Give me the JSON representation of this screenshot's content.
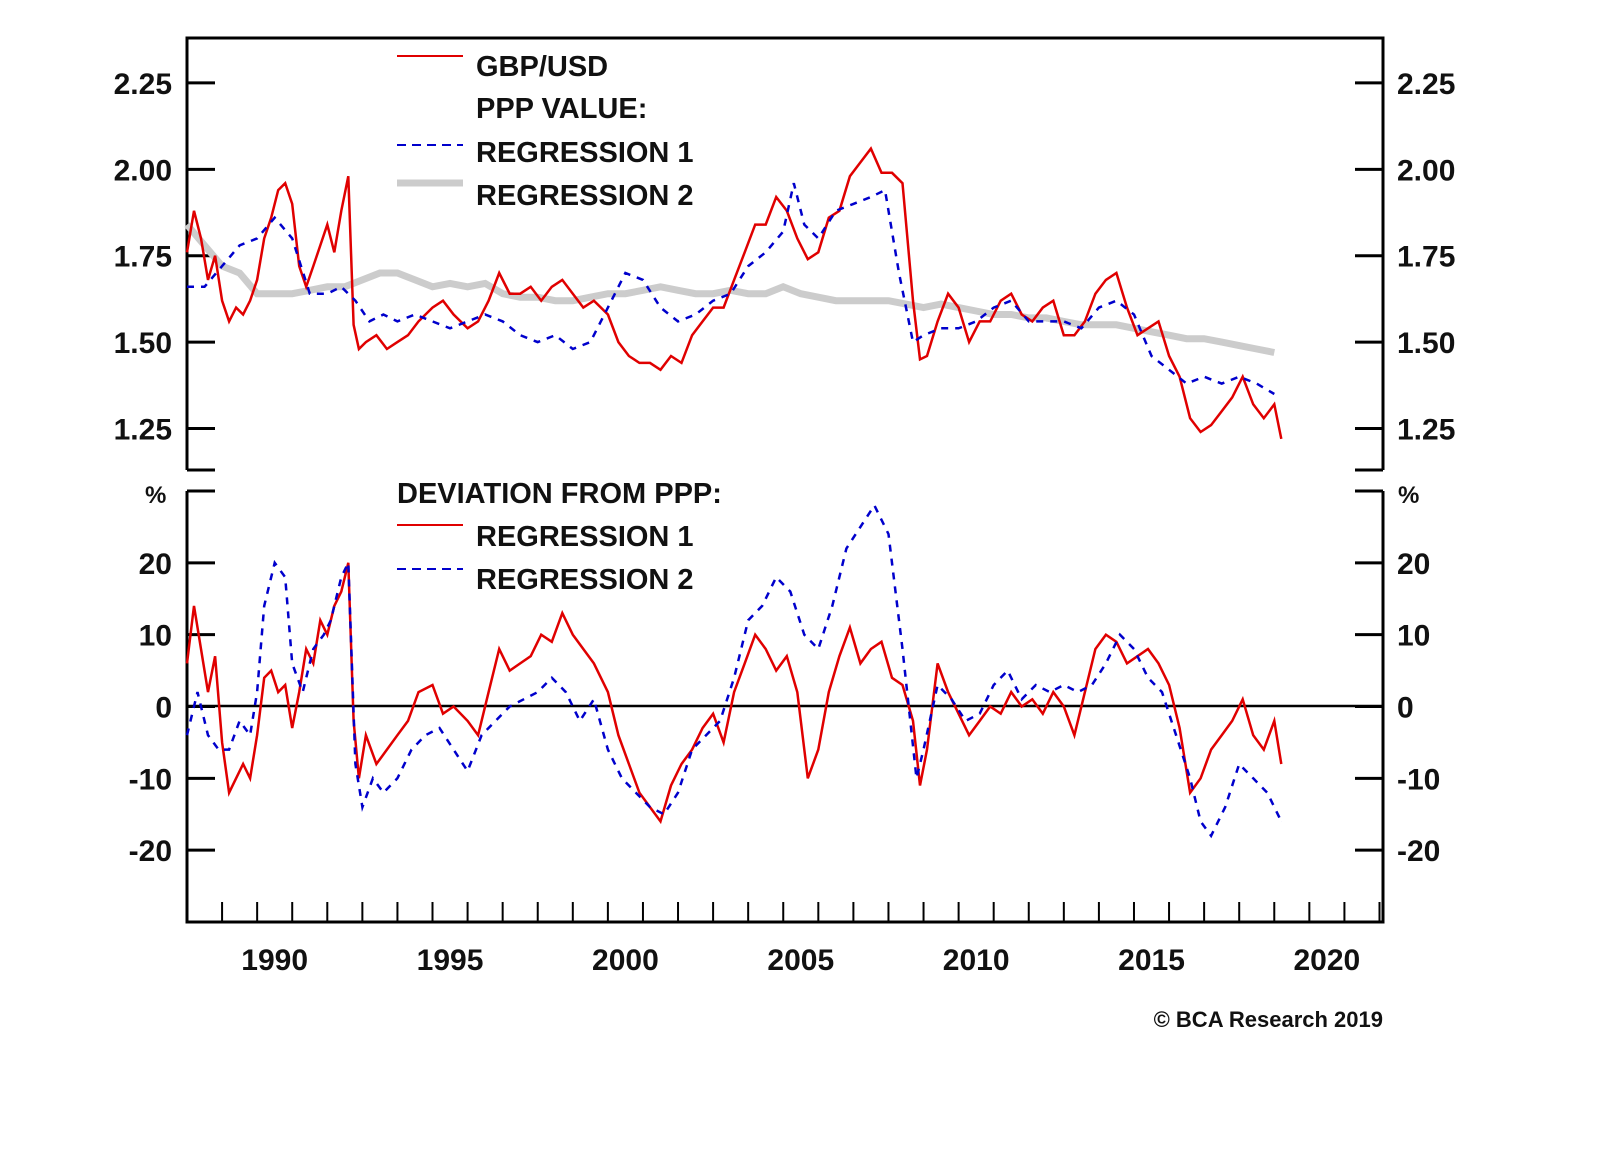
{
  "chart_data": [
    {
      "type": "line",
      "panel": "top",
      "title": "",
      "xlabel": "",
      "ylabel": "",
      "ylim": [
        1.13,
        2.38
      ],
      "xlim": [
        1988.0,
        2022.1
      ],
      "yticks": [
        "2.25",
        "2.00",
        "1.75",
        "1.50",
        "1.25"
      ],
      "ytick_values": [
        2.25,
        2.0,
        1.75,
        1.5,
        1.25
      ],
      "grid": false,
      "legend": {
        "placement": "top-left",
        "entries": [
          {
            "label": "GBP/USD",
            "style": "solid",
            "color": "#e00000"
          },
          {
            "label": "PPP VALUE:",
            "style": "none"
          },
          {
            "label": "REGRESSION 1",
            "style": "dashed",
            "color": "#0000cc"
          },
          {
            "label": "REGRESSION 2",
            "style": "thick",
            "color": "#cccccc"
          }
        ]
      },
      "series": [
        {
          "name": "GBP/USD",
          "color": "#e00000",
          "style": "solid",
          "x": [
            1988.0,
            1988.2,
            1988.4,
            1988.6,
            1988.8,
            1989.0,
            1989.2,
            1989.4,
            1989.6,
            1989.8,
            1990.0,
            1990.2,
            1990.4,
            1990.6,
            1990.8,
            1991.0,
            1991.2,
            1991.4,
            1991.6,
            1991.8,
            1992.0,
            1992.2,
            1992.4,
            1992.6,
            1992.75,
            1992.9,
            1993.1,
            1993.4,
            1993.7,
            1994.0,
            1994.3,
            1994.6,
            1995.0,
            1995.3,
            1995.6,
            1996.0,
            1996.3,
            1996.6,
            1996.9,
            1997.2,
            1997.5,
            1997.8,
            1998.1,
            1998.4,
            1998.7,
            1999.0,
            1999.3,
            1999.6,
            2000.0,
            2000.3,
            2000.6,
            2000.9,
            2001.2,
            2001.5,
            2001.8,
            2002.1,
            2002.4,
            2002.7,
            2003.0,
            2003.3,
            2003.6,
            2003.9,
            2004.2,
            2004.5,
            2004.8,
            2005.1,
            2005.4,
            2005.7,
            2006.0,
            2006.3,
            2006.6,
            2006.9,
            2007.2,
            2007.5,
            2007.8,
            2008.1,
            2008.4,
            2008.7,
            2008.9,
            2009.1,
            2009.4,
            2009.7,
            2010.0,
            2010.3,
            2010.6,
            2010.9,
            2011.2,
            2011.5,
            2011.8,
            2012.1,
            2012.4,
            2012.7,
            2013.0,
            2013.3,
            2013.6,
            2013.9,
            2014.2,
            2014.5,
            2014.8,
            2015.1,
            2015.4,
            2015.7,
            2016.0,
            2016.3,
            2016.6,
            2016.9,
            2017.2,
            2017.5,
            2017.8,
            2018.1,
            2018.4,
            2018.7,
            2019.0,
            2019.2
          ],
          "values": [
            1.76,
            1.88,
            1.8,
            1.68,
            1.75,
            1.62,
            1.56,
            1.6,
            1.58,
            1.62,
            1.68,
            1.8,
            1.86,
            1.94,
            1.96,
            1.9,
            1.72,
            1.66,
            1.72,
            1.78,
            1.84,
            1.76,
            1.88,
            1.98,
            1.55,
            1.48,
            1.5,
            1.52,
            1.48,
            1.5,
            1.52,
            1.56,
            1.6,
            1.62,
            1.58,
            1.54,
            1.56,
            1.62,
            1.7,
            1.64,
            1.64,
            1.66,
            1.62,
            1.66,
            1.68,
            1.64,
            1.6,
            1.62,
            1.58,
            1.5,
            1.46,
            1.44,
            1.44,
            1.42,
            1.46,
            1.44,
            1.52,
            1.56,
            1.6,
            1.6,
            1.68,
            1.76,
            1.84,
            1.84,
            1.92,
            1.88,
            1.8,
            1.74,
            1.76,
            1.86,
            1.88,
            1.98,
            2.02,
            2.06,
            1.99,
            1.99,
            1.96,
            1.62,
            1.45,
            1.46,
            1.56,
            1.64,
            1.6,
            1.5,
            1.56,
            1.56,
            1.62,
            1.64,
            1.58,
            1.56,
            1.6,
            1.62,
            1.52,
            1.52,
            1.56,
            1.64,
            1.68,
            1.7,
            1.6,
            1.52,
            1.54,
            1.56,
            1.46,
            1.4,
            1.28,
            1.24,
            1.26,
            1.3,
            1.34,
            1.4,
            1.32,
            1.28,
            1.32,
            1.22
          ]
        },
        {
          "name": "PPP Value: Regression 1",
          "color": "#0000cc",
          "style": "dashed",
          "x": [
            1988.0,
            1988.5,
            1989.0,
            1989.5,
            1990.0,
            1990.5,
            1991.0,
            1991.5,
            1992.0,
            1992.4,
            1992.8,
            1993.2,
            1993.6,
            1994.0,
            1994.5,
            1995.0,
            1995.5,
            1996.0,
            1996.5,
            1997.0,
            1997.5,
            1998.0,
            1998.5,
            1999.0,
            1999.5,
            2000.0,
            2000.5,
            2001.0,
            2001.5,
            2002.0,
            2002.5,
            2003.0,
            2003.5,
            2004.0,
            2004.5,
            2005.0,
            2005.3,
            2005.6,
            2006.0,
            2006.5,
            2007.0,
            2007.5,
            2007.9,
            2008.3,
            2008.7,
            2009.0,
            2009.5,
            2010.0,
            2010.5,
            2011.0,
            2011.5,
            2012.0,
            2012.5,
            2013.0,
            2013.5,
            2014.0,
            2014.5,
            2015.0,
            2015.5,
            2016.0,
            2016.5,
            2017.0,
            2017.5,
            2018.0,
            2018.5,
            2019.0
          ],
          "values": [
            1.66,
            1.66,
            1.72,
            1.78,
            1.8,
            1.86,
            1.8,
            1.64,
            1.64,
            1.66,
            1.62,
            1.56,
            1.58,
            1.56,
            1.58,
            1.56,
            1.54,
            1.56,
            1.58,
            1.56,
            1.52,
            1.5,
            1.52,
            1.48,
            1.5,
            1.6,
            1.7,
            1.68,
            1.6,
            1.56,
            1.58,
            1.62,
            1.64,
            1.72,
            1.76,
            1.82,
            1.96,
            1.84,
            1.8,
            1.88,
            1.9,
            1.92,
            1.94,
            1.7,
            1.5,
            1.52,
            1.54,
            1.54,
            1.56,
            1.6,
            1.62,
            1.56,
            1.56,
            1.56,
            1.54,
            1.6,
            1.62,
            1.58,
            1.46,
            1.42,
            1.38,
            1.4,
            1.38,
            1.4,
            1.38,
            1.35
          ]
        },
        {
          "name": "PPP Value: Regression 2",
          "color": "#cccccc",
          "style": "thick",
          "x": [
            1988.0,
            1988.5,
            1989.0,
            1989.5,
            1990.0,
            1990.5,
            1991.0,
            1991.5,
            1992.0,
            1992.5,
            1993.0,
            1993.5,
            1994.0,
            1994.5,
            1995.0,
            1995.5,
            1996.0,
            1996.5,
            1997.0,
            1997.5,
            1998.0,
            1998.5,
            1999.0,
            1999.5,
            2000.0,
            2000.5,
            2001.0,
            2001.5,
            2002.0,
            2002.5,
            2003.0,
            2003.5,
            2004.0,
            2004.5,
            2005.0,
            2005.5,
            2006.0,
            2006.5,
            2007.0,
            2007.5,
            2008.0,
            2008.5,
            2009.0,
            2009.5,
            2010.0,
            2010.5,
            2011.0,
            2011.5,
            2012.0,
            2012.5,
            2013.0,
            2013.5,
            2014.0,
            2014.5,
            2015.0,
            2015.5,
            2016.0,
            2016.5,
            2017.0,
            2017.5,
            2018.0,
            2018.5,
            2019.0
          ],
          "values": [
            1.84,
            1.78,
            1.72,
            1.7,
            1.64,
            1.64,
            1.64,
            1.65,
            1.66,
            1.66,
            1.68,
            1.7,
            1.7,
            1.68,
            1.66,
            1.67,
            1.66,
            1.67,
            1.64,
            1.63,
            1.63,
            1.62,
            1.62,
            1.63,
            1.64,
            1.64,
            1.65,
            1.66,
            1.65,
            1.64,
            1.64,
            1.65,
            1.64,
            1.64,
            1.66,
            1.64,
            1.63,
            1.62,
            1.62,
            1.62,
            1.62,
            1.61,
            1.6,
            1.61,
            1.6,
            1.59,
            1.58,
            1.58,
            1.57,
            1.57,
            1.56,
            1.55,
            1.55,
            1.55,
            1.54,
            1.53,
            1.52,
            1.51,
            1.51,
            1.5,
            1.49,
            1.48,
            1.47
          ]
        }
      ]
    },
    {
      "type": "line",
      "panel": "bottom",
      "title": "",
      "xlabel": "",
      "ylabel": "%",
      "ylim": [
        -30,
        30
      ],
      "xlim": [
        1988.0,
        2022.1
      ],
      "yticks": [
        "20",
        "10",
        "0",
        "-10",
        "-20"
      ],
      "ytick_values": [
        20,
        10,
        0,
        -10,
        -20
      ],
      "zero_line": true,
      "grid": false,
      "xticks": [
        "1990",
        "1995",
        "2000",
        "2005",
        "2010",
        "2015",
        "2020"
      ],
      "xtick_values": [
        1990,
        1995,
        2000,
        2005,
        2010,
        2015,
        2020
      ],
      "legend": {
        "placement": "top-left",
        "entries": [
          {
            "label": "DEVIATION FROM PPP:",
            "style": "none"
          },
          {
            "label": "REGRESSION 1",
            "style": "solid",
            "color": "#e00000"
          },
          {
            "label": "REGRESSION 2",
            "style": "dashed",
            "color": "#0000cc"
          }
        ]
      },
      "series": [
        {
          "name": "Deviation from PPP: Regression 1",
          "color": "#e00000",
          "style": "solid",
          "x": [
            1988.0,
            1988.2,
            1988.4,
            1988.6,
            1988.8,
            1989.0,
            1989.2,
            1989.4,
            1989.6,
            1989.8,
            1990.0,
            1990.2,
            1990.4,
            1990.6,
            1990.8,
            1991.0,
            1991.2,
            1991.4,
            1991.6,
            1991.8,
            1992.0,
            1992.2,
            1992.4,
            1992.6,
            1992.75,
            1992.9,
            1993.1,
            1993.4,
            1993.7,
            1994.0,
            1994.3,
            1994.6,
            1995.0,
            1995.3,
            1995.6,
            1996.0,
            1996.3,
            1996.6,
            1996.9,
            1997.2,
            1997.5,
            1997.8,
            1998.1,
            1998.4,
            1998.7,
            1999.0,
            1999.3,
            1999.6,
            2000.0,
            2000.3,
            2000.6,
            2000.9,
            2001.2,
            2001.5,
            2001.8,
            2002.1,
            2002.4,
            2002.7,
            2003.0,
            2003.3,
            2003.6,
            2003.9,
            2004.2,
            2004.5,
            2004.8,
            2005.1,
            2005.4,
            2005.7,
            2006.0,
            2006.3,
            2006.6,
            2006.9,
            2007.2,
            2007.5,
            2007.8,
            2008.1,
            2008.4,
            2008.7,
            2008.9,
            2009.1,
            2009.4,
            2009.7,
            2010.0,
            2010.3,
            2010.6,
            2010.9,
            2011.2,
            2011.5,
            2011.8,
            2012.1,
            2012.4,
            2012.7,
            2013.0,
            2013.3,
            2013.6,
            2013.9,
            2014.2,
            2014.5,
            2014.8,
            2015.1,
            2015.4,
            2015.7,
            2016.0,
            2016.3,
            2016.6,
            2016.9,
            2017.2,
            2017.5,
            2017.8,
            2018.1,
            2018.4,
            2018.7,
            2019.0,
            2019.2
          ],
          "values": [
            6,
            14,
            8,
            2,
            7,
            -5,
            -12,
            -10,
            -8,
            -10,
            -4,
            4,
            5,
            2,
            3,
            -3,
            2,
            8,
            6,
            12,
            10,
            14,
            16,
            20,
            -2,
            -10,
            -4,
            -8,
            -6,
            -4,
            -2,
            2,
            3,
            -1,
            0,
            -2,
            -4,
            2,
            8,
            5,
            6,
            7,
            10,
            9,
            13,
            10,
            8,
            6,
            2,
            -4,
            -8,
            -12,
            -14,
            -16,
            -11,
            -8,
            -6,
            -3,
            -1,
            -5,
            2,
            6,
            10,
            8,
            5,
            7,
            2,
            -10,
            -6,
            2,
            7,
            11,
            6,
            8,
            9,
            4,
            3,
            -2,
            -11,
            -6,
            6,
            2,
            -1,
            -4,
            -2,
            0,
            -1,
            2,
            0,
            1,
            -1,
            2,
            0,
            -4,
            2,
            8,
            10,
            9,
            6,
            7,
            8,
            6,
            3,
            -3,
            -12,
            -10,
            -6,
            -4,
            -2,
            1,
            -4,
            -6,
            -2,
            -8
          ]
        },
        {
          "name": "Deviation from PPP: Regression 2",
          "color": "#0000cc",
          "style": "dashed",
          "x": [
            1988.0,
            1988.3,
            1988.6,
            1988.9,
            1989.2,
            1989.5,
            1989.8,
            1990.0,
            1990.2,
            1990.5,
            1990.8,
            1991.0,
            1991.3,
            1991.6,
            1991.9,
            1992.1,
            1992.4,
            1992.6,
            1992.8,
            1993.0,
            1993.3,
            1993.6,
            1994.0,
            1994.4,
            1994.8,
            1995.2,
            1995.6,
            1996.0,
            1996.4,
            1996.8,
            1997.2,
            1997.6,
            1998.0,
            1998.4,
            1998.8,
            1999.2,
            1999.6,
            2000.0,
            2000.4,
            2000.8,
            2001.2,
            2001.6,
            2002.0,
            2002.4,
            2002.8,
            2003.2,
            2003.6,
            2004.0,
            2004.4,
            2004.8,
            2005.2,
            2005.6,
            2006.0,
            2006.4,
            2006.8,
            2007.2,
            2007.6,
            2008.0,
            2008.4,
            2008.8,
            2009.0,
            2009.4,
            2009.8,
            2010.2,
            2010.6,
            2011.0,
            2011.4,
            2011.8,
            2012.2,
            2012.6,
            2013.0,
            2013.4,
            2013.8,
            2014.2,
            2014.6,
            2015.0,
            2015.4,
            2015.8,
            2016.2,
            2016.6,
            2016.9,
            2017.2,
            2017.6,
            2018.0,
            2018.4,
            2018.8,
            2019.0,
            2019.2
          ],
          "values": [
            -4,
            2,
            -4,
            -6,
            -6,
            -2,
            -4,
            2,
            14,
            20,
            18,
            6,
            2,
            8,
            10,
            12,
            18,
            20,
            -8,
            -14,
            -10,
            -12,
            -10,
            -6,
            -4,
            -3,
            -6,
            -9,
            -4,
            -2,
            0,
            1,
            2,
            4,
            2,
            -2,
            1,
            -6,
            -10,
            -12,
            -14,
            -15,
            -12,
            -6,
            -4,
            -2,
            4,
            12,
            14,
            18,
            16,
            10,
            8,
            14,
            22,
            25,
            28,
            24,
            8,
            -10,
            -6,
            3,
            1,
            -2,
            -1,
            3,
            5,
            1,
            3,
            2,
            3,
            2,
            3,
            6,
            10,
            8,
            4,
            2,
            -4,
            -10,
            -16,
            -18,
            -14,
            -8,
            -10,
            -12,
            -14,
            -16
          ]
        }
      ]
    }
  ],
  "copyright": "© BCA Research 2019"
}
